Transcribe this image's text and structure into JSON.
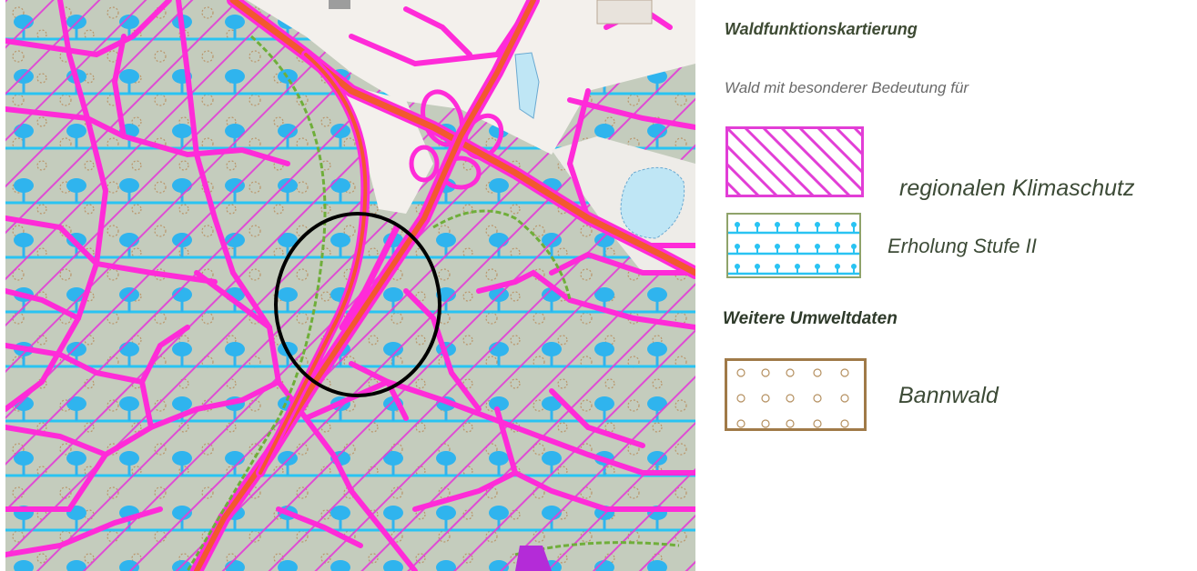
{
  "legend": {
    "title": "Waldfunktionskartierung",
    "subtitle": "Wald mit besonderer Bedeutung für",
    "items": [
      {
        "label": "regionalen Klimaschutz",
        "pattern": "diagonal-hatch",
        "color": "#e23ed6"
      },
      {
        "label": "Erholung Stufe II",
        "pattern": "tree-symbols-horizontal-lines",
        "color": "#29c3f2"
      }
    ],
    "section2_title": "Weitere Umweltdaten",
    "items2": [
      {
        "label": "Bannwald",
        "pattern": "circles",
        "color": "#b07a3a"
      }
    ]
  },
  "map": {
    "colors": {
      "forest": "#c4ccbd",
      "road": "#ff2bd8",
      "highway": "#f2592f",
      "water": "#bfe6f5",
      "open": "#f3f0ec"
    },
    "highlight": "circle-marker"
  }
}
